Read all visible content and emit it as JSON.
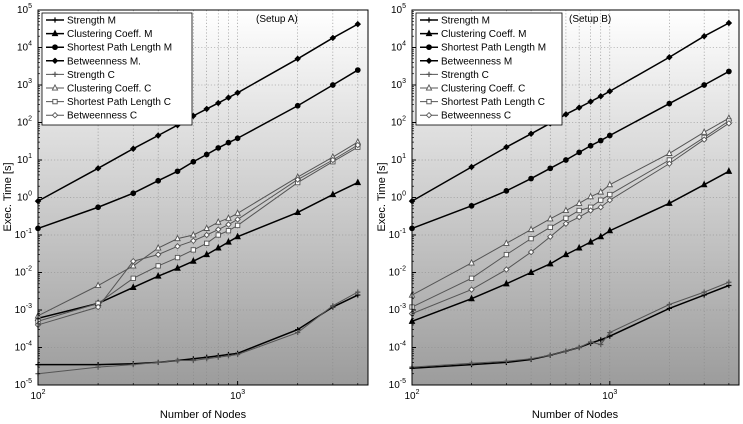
{
  "chart_data": [
    {
      "type": "line",
      "scale": "log-log",
      "setup_label": "(Setup A)",
      "xlabel": "Number of Nodes",
      "ylabel": "Exec. Time [s]",
      "xlim": [
        100,
        4500
      ],
      "ylim": [
        1e-05,
        100000
      ],
      "x_ticks": [
        100,
        1000
      ],
      "y_ticks": [
        1e-05,
        0.0001,
        0.001,
        0.01,
        0.1,
        1,
        10,
        100,
        1000,
        10000,
        100000
      ],
      "legend_position": "top-left",
      "x": [
        100,
        200,
        300,
        400,
        500,
        600,
        700,
        800,
        900,
        1000,
        2000,
        3000,
        4000
      ],
      "series": [
        {
          "name": "Strength M",
          "marker": "plus",
          "values": [
            3.5e-05,
            3.5e-05,
            3.7e-05,
            4e-05,
            4.5e-05,
            5e-05,
            5.5e-05,
            6e-05,
            6.5e-05,
            7e-05,
            0.0003,
            0.0012,
            0.0025
          ]
        },
        {
          "name": "Clustering Coeff. M",
          "marker": "triangle-filled",
          "values": [
            0.0006,
            0.0015,
            0.004,
            0.008,
            0.013,
            0.02,
            0.03,
            0.045,
            0.065,
            0.09,
            0.4,
            1.2,
            2.5
          ]
        },
        {
          "name": "Shortest Path Length M",
          "marker": "circle-filled",
          "values": [
            0.15,
            0.55,
            1.3,
            2.8,
            5,
            9,
            14,
            21,
            29,
            38,
            280,
            1000,
            2500
          ]
        },
        {
          "name": "Betweenness M.",
          "marker": "diamond-filled",
          "values": [
            0.8,
            6,
            20,
            45,
            85,
            150,
            230,
            330,
            460,
            620,
            5000,
            18000,
            42000
          ]
        },
        {
          "name": "Strength C",
          "marker": "plus-thin",
          "values": [
            2e-05,
            3e-05,
            3.5e-05,
            4e-05,
            4.5e-05,
            4.5e-05,
            5e-05,
            5.5e-05,
            6e-05,
            6.5e-05,
            0.00025,
            0.0013,
            0.003
          ]
        },
        {
          "name": "Clustering Coeff. C",
          "marker": "triangle-open",
          "values": [
            0.0007,
            0.0045,
            0.015,
            0.045,
            0.08,
            0.1,
            0.15,
            0.22,
            0.28,
            0.38,
            3.5,
            12,
            30
          ]
        },
        {
          "name": "Shortest Path Length C",
          "marker": "square-open",
          "values": [
            0.0005,
            0.0015,
            0.007,
            0.015,
            0.025,
            0.04,
            0.06,
            0.1,
            0.13,
            0.18,
            2.5,
            9,
            22
          ]
        },
        {
          "name": "Betweenness C",
          "marker": "diamond-open",
          "values": [
            0.0004,
            0.0012,
            0.02,
            0.03,
            0.05,
            0.07,
            0.1,
            0.14,
            0.19,
            0.26,
            3,
            10,
            25
          ]
        }
      ]
    },
    {
      "type": "line",
      "scale": "log-log",
      "setup_label": "(Setup B)",
      "xlabel": "Number of Nodes",
      "ylabel": "Exec. Time [s]",
      "xlim": [
        100,
        4500
      ],
      "ylim": [
        1e-05,
        100000
      ],
      "x_ticks": [
        100,
        1000
      ],
      "y_ticks": [
        1e-05,
        0.0001,
        0.001,
        0.01,
        0.1,
        1,
        10,
        100,
        1000,
        10000,
        100000
      ],
      "legend_position": "top-left",
      "x": [
        100,
        200,
        300,
        400,
        500,
        600,
        700,
        800,
        900,
        1000,
        2000,
        3000,
        4000
      ],
      "series": [
        {
          "name": "Strength M",
          "marker": "plus",
          "values": [
            2.8e-05,
            3.5e-05,
            4e-05,
            4.8e-05,
            6.2e-05,
            8e-05,
            0.0001,
            0.00013,
            0.00016,
            0.0002,
            0.0011,
            0.0025,
            0.0045
          ]
        },
        {
          "name": "Clustering Coeff. M",
          "marker": "triangle-filled",
          "values": [
            0.0005,
            0.002,
            0.005,
            0.01,
            0.017,
            0.03,
            0.045,
            0.065,
            0.09,
            0.13,
            0.7,
            2.2,
            5
          ]
        },
        {
          "name": "Shortest Path Length M",
          "marker": "circle-filled",
          "values": [
            0.15,
            0.6,
            1.5,
            3.2,
            6,
            10,
            16,
            24,
            33,
            45,
            320,
            1000,
            2300
          ]
        },
        {
          "name": "Betweenness M",
          "marker": "diamond-filled",
          "values": [
            0.8,
            6.5,
            22,
            50,
            95,
            165,
            250,
            360,
            500,
            680,
            5500,
            20000,
            45000
          ]
        },
        {
          "name": "Strength C",
          "marker": "plus-thin",
          "values": [
            3e-05,
            3.8e-05,
            4.3e-05,
            5e-05,
            6.2e-05,
            8e-05,
            0.0001,
            0.00014,
            0.00012,
            0.00025,
            0.0014,
            0.003,
            0.0055
          ]
        },
        {
          "name": "Clustering Coeff. C",
          "marker": "triangle-open",
          "values": [
            0.0025,
            0.018,
            0.06,
            0.14,
            0.27,
            0.45,
            0.7,
            1.05,
            1.4,
            2.2,
            15,
            55,
            130
          ]
        },
        {
          "name": "Shortest Path Length C",
          "marker": "square-open",
          "values": [
            0.0012,
            0.007,
            0.03,
            0.08,
            0.16,
            0.28,
            0.45,
            0.55,
            0.85,
            1.2,
            10,
            40,
            110
          ]
        },
        {
          "name": "Betweenness C",
          "marker": "diamond-open",
          "values": [
            0.0008,
            0.0035,
            0.012,
            0.035,
            0.09,
            0.2,
            0.3,
            0.45,
            0.55,
            0.85,
            8,
            35,
            95
          ]
        }
      ]
    }
  ]
}
